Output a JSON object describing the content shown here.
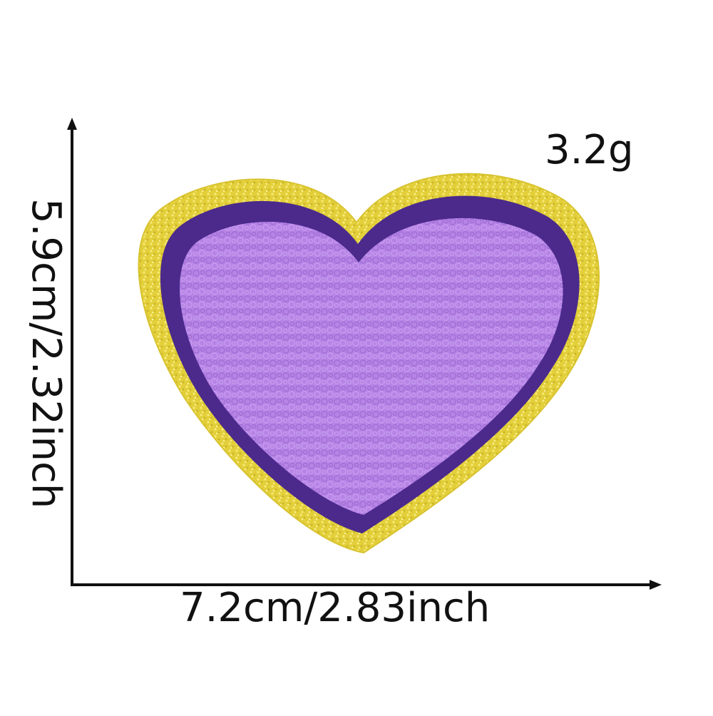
{
  "product": {
    "name": "heart patch",
    "weight": "3.2g",
    "width": "7.2cm/2.83inch",
    "height": "5.9cm/2.32inch"
  },
  "colors": {
    "glitter_border": "#e3cf3a",
    "glitter_highlight": "#f6ea7a",
    "outline": "#4b2a8c",
    "chenille_fill": "#b784e6",
    "chenille_shadow": "#a06fd6",
    "axis": "#111111"
  },
  "icons": {
    "vertical_arrow": "arrow-up-icon",
    "horizontal_arrow": "arrow-right-icon"
  }
}
